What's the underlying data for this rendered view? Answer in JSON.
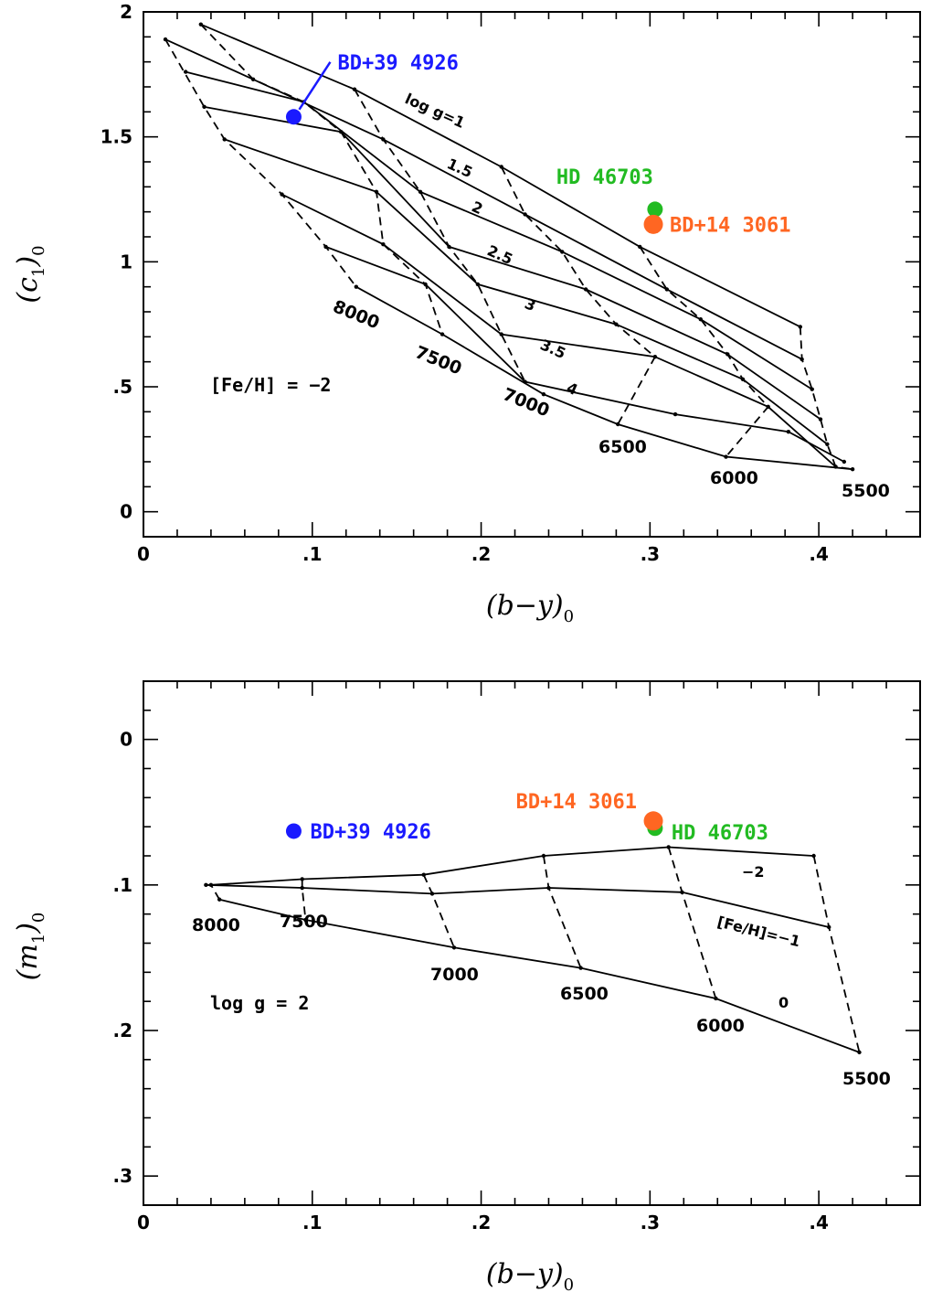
{
  "chart_data": [
    {
      "type": "line",
      "xlabel": "(b−y)",
      "xlabel_sub": "0",
      "ylabel": "(c",
      "ylabel_sub1": "1",
      "ylabel_close": ")",
      "ylabel_sub2": "0",
      "xlim": [
        0,
        0.46
      ],
      "ylim": [
        -0.1,
        2.0
      ],
      "y_inverted": false,
      "x_ticks": [
        {
          "value": 0,
          "label": "0"
        },
        {
          "value": 0.1,
          "label": ".1"
        },
        {
          "value": 0.2,
          "label": ".2"
        },
        {
          "value": 0.3,
          "label": ".3"
        },
        {
          "value": 0.4,
          "label": ".4"
        }
      ],
      "y_ticks": [
        {
          "value": 0,
          "label": "0"
        },
        {
          "value": 0.5,
          "label": ".5"
        },
        {
          "value": 1.0,
          "label": "1"
        },
        {
          "value": 1.5,
          "label": "1.5"
        },
        {
          "value": 2.0,
          "label": "2"
        }
      ],
      "annotation": "[Fe/H] = −2",
      "logg_lines": [
        {
          "label": "log g=1",
          "points": [
            [
              0.034,
              1.95
            ],
            [
              0.125,
              1.69
            ],
            [
              0.212,
              1.38
            ],
            [
              0.294,
              1.06
            ],
            [
              0.389,
              0.74
            ]
          ]
        },
        {
          "label": "1.5",
          "points": [
            [
              0.013,
              1.89
            ],
            [
              0.065,
              1.73
            ],
            [
              0.142,
              1.49
            ],
            [
              0.226,
              1.19
            ],
            [
              0.31,
              0.89
            ],
            [
              0.39,
              0.61
            ]
          ]
        },
        {
          "label": "2",
          "points": [
            [
              0.025,
              1.76
            ],
            [
              0.095,
              1.64
            ],
            [
              0.164,
              1.28
            ],
            [
              0.248,
              1.04
            ],
            [
              0.33,
              0.77
            ],
            [
              0.396,
              0.49
            ]
          ]
        },
        {
          "label": "2.5",
          "points": [
            [
              0.036,
              1.62
            ],
            [
              0.117,
              1.52
            ],
            [
              0.181,
              1.06
            ],
            [
              0.262,
              0.89
            ],
            [
              0.346,
              0.63
            ],
            [
              0.401,
              0.37
            ]
          ]
        },
        {
          "label": "3",
          "points": [
            [
              0.048,
              1.49
            ],
            [
              0.138,
              1.28
            ],
            [
              0.198,
              0.91
            ],
            [
              0.28,
              0.75
            ],
            [
              0.355,
              0.53
            ],
            [
              0.405,
              0.27
            ]
          ]
        },
        {
          "label": "3.5",
          "points": [
            [
              0.082,
              1.27
            ],
            [
              0.142,
              1.07
            ],
            [
              0.212,
              0.71
            ],
            [
              0.303,
              0.62
            ],
            [
              0.37,
              0.42
            ],
            [
              0.41,
              0.18
            ]
          ]
        },
        {
          "label": "4",
          "points": [
            [
              0.108,
              1.06
            ],
            [
              0.167,
              0.91
            ],
            [
              0.226,
              0.52
            ],
            [
              0.315,
              0.39
            ],
            [
              0.382,
              0.32
            ],
            [
              0.415,
              0.2
            ]
          ]
        },
        {
          "label": "",
          "points": [
            [
              0.126,
              0.9
            ],
            [
              0.177,
              0.71
            ],
            [
              0.237,
              0.47
            ],
            [
              0.281,
              0.35
            ],
            [
              0.345,
              0.22
            ],
            [
              0.42,
              0.17
            ]
          ]
        }
      ],
      "teff_lines": [
        {
          "label": "8000",
          "points": [
            [
              0.013,
              1.89
            ],
            [
              0.036,
              1.62
            ],
            [
              0.048,
              1.49
            ],
            [
              0.082,
              1.27
            ],
            [
              0.108,
              1.06
            ],
            [
              0.126,
              0.9
            ]
          ]
        },
        {
          "label": "7500",
          "points": [
            [
              0.034,
              1.95
            ],
            [
              0.065,
              1.73
            ],
            [
              0.095,
              1.64
            ],
            [
              0.117,
              1.52
            ],
            [
              0.138,
              1.28
            ],
            [
              0.142,
              1.07
            ],
            [
              0.167,
              0.91
            ],
            [
              0.177,
              0.71
            ]
          ]
        },
        {
          "label": "7000",
          "points": [
            [
              0.125,
              1.69
            ],
            [
              0.142,
              1.49
            ],
            [
              0.164,
              1.28
            ],
            [
              0.181,
              1.06
            ],
            [
              0.198,
              0.91
            ],
            [
              0.212,
              0.71
            ],
            [
              0.226,
              0.52
            ]
          ]
        },
        {
          "label": "6500",
          "points": [
            [
              0.212,
              1.38
            ],
            [
              0.226,
              1.19
            ],
            [
              0.248,
              1.04
            ],
            [
              0.262,
              0.89
            ],
            [
              0.28,
              0.75
            ],
            [
              0.303,
              0.62
            ],
            [
              0.281,
              0.35
            ]
          ]
        },
        {
          "label": "6000",
          "points": [
            [
              0.294,
              1.06
            ],
            [
              0.31,
              0.89
            ],
            [
              0.33,
              0.77
            ],
            [
              0.346,
              0.63
            ],
            [
              0.355,
              0.53
            ],
            [
              0.37,
              0.42
            ],
            [
              0.345,
              0.22
            ]
          ]
        },
        {
          "label": "5500",
          "points": [
            [
              0.389,
              0.74
            ],
            [
              0.39,
              0.61
            ],
            [
              0.396,
              0.49
            ],
            [
              0.401,
              0.37
            ],
            [
              0.405,
              0.27
            ],
            [
              0.41,
              0.18
            ],
            [
              0.42,
              0.17
            ]
          ]
        }
      ],
      "stars": [
        {
          "name": "BD+39 4926",
          "x": 0.089,
          "y": 1.58,
          "color": "#1a1aff"
        },
        {
          "name": "HD 46703",
          "x": 0.303,
          "y": 1.21,
          "color": "#22bb22"
        },
        {
          "name": "BD+14 3061",
          "x": 0.302,
          "y": 1.15,
          "color": "#ff6622"
        }
      ]
    },
    {
      "type": "line",
      "xlabel": "(b−y)",
      "xlabel_sub": "0",
      "ylabel": "(m",
      "ylabel_sub1": "1",
      "ylabel_close": ")",
      "ylabel_sub2": "0",
      "xlim": [
        0,
        0.46
      ],
      "ylim": [
        0.32,
        -0.04
      ],
      "y_inverted": true,
      "x_ticks": [
        {
          "value": 0,
          "label": "0"
        },
        {
          "value": 0.1,
          "label": ".1"
        },
        {
          "value": 0.2,
          "label": ".2"
        },
        {
          "value": 0.3,
          "label": ".3"
        },
        {
          "value": 0.4,
          "label": ".4"
        }
      ],
      "y_ticks": [
        {
          "value": 0,
          "label": "0"
        },
        {
          "value": 0.1,
          "label": ".1"
        },
        {
          "value": 0.2,
          "label": ".2"
        },
        {
          "value": 0.3,
          "label": ".3"
        }
      ],
      "annotation": "log g = 2",
      "feh_lines": [
        {
          "label": "−2",
          "points": [
            [
              0.04,
              0.1
            ],
            [
              0.094,
              0.096
            ],
            [
              0.166,
              0.093
            ],
            [
              0.237,
              0.08
            ],
            [
              0.311,
              0.074
            ],
            [
              0.397,
              0.08
            ]
          ]
        },
        {
          "label": "[Fe/H]=−1",
          "points": [
            [
              0.037,
              0.1
            ],
            [
              0.094,
              0.102
            ],
            [
              0.171,
              0.106
            ],
            [
              0.24,
              0.102
            ],
            [
              0.319,
              0.105
            ],
            [
              0.406,
              0.129
            ]
          ]
        },
        {
          "label": "0",
          "points": [
            [
              0.045,
              0.11
            ],
            [
              0.096,
              0.124
            ],
            [
              0.184,
              0.143
            ],
            [
              0.259,
              0.157
            ],
            [
              0.339,
              0.178
            ],
            [
              0.424,
              0.215
            ]
          ]
        }
      ],
      "teff_lines": [
        {
          "label": "8000",
          "points": [
            [
              0.037,
              0.1
            ],
            [
              0.04,
              0.1
            ],
            [
              0.045,
              0.11
            ]
          ]
        },
        {
          "label": "7500",
          "points": [
            [
              0.094,
              0.096
            ],
            [
              0.094,
              0.102
            ],
            [
              0.096,
              0.124
            ]
          ]
        },
        {
          "label": "7000",
          "points": [
            [
              0.166,
              0.093
            ],
            [
              0.171,
              0.106
            ],
            [
              0.184,
              0.143
            ]
          ]
        },
        {
          "label": "6500",
          "points": [
            [
              0.237,
              0.08
            ],
            [
              0.24,
              0.102
            ],
            [
              0.259,
              0.157
            ]
          ]
        },
        {
          "label": "6000",
          "points": [
            [
              0.311,
              0.074
            ],
            [
              0.319,
              0.105
            ],
            [
              0.339,
              0.178
            ]
          ]
        },
        {
          "label": "5500",
          "points": [
            [
              0.397,
              0.08
            ],
            [
              0.406,
              0.129
            ],
            [
              0.424,
              0.215
            ]
          ]
        }
      ],
      "stars": [
        {
          "name": "BD+39 4926",
          "x": 0.089,
          "y": 0.063,
          "color": "#1a1aff"
        },
        {
          "name": "HD 46703",
          "x": 0.303,
          "y": 0.061,
          "color": "#22bb22"
        },
        {
          "name": "BD+14 3061",
          "x": 0.302,
          "y": 0.056,
          "color": "#ff6622"
        }
      ]
    }
  ]
}
